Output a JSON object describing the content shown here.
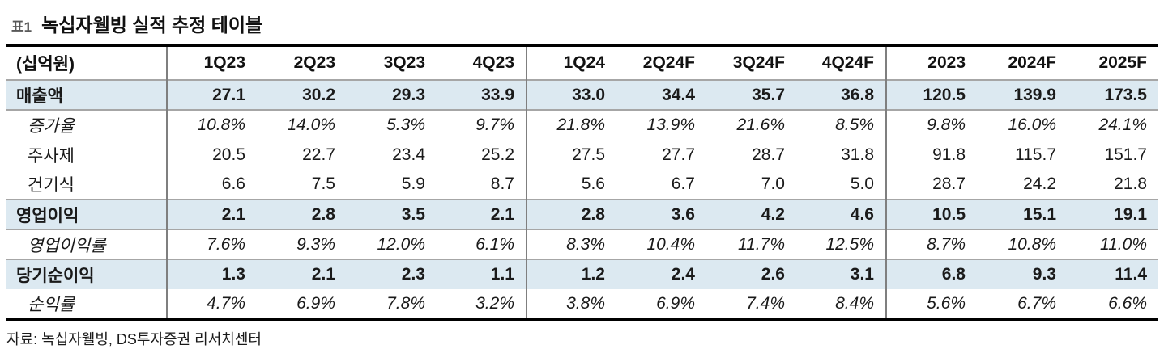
{
  "title": {
    "tag": "표1",
    "text": "녹십자웰빙 실적 추정 테이블"
  },
  "table": {
    "unit_label": "(십억원)",
    "columns": [
      "1Q23",
      "2Q23",
      "3Q23",
      "4Q23",
      "1Q24",
      "2Q24F",
      "3Q24F",
      "4Q24F",
      "2023",
      "2024F",
      "2025F"
    ],
    "rows": [
      {
        "label": "매출액",
        "style": "section",
        "values": [
          "27.1",
          "30.2",
          "29.3",
          "33.9",
          "33.0",
          "34.4",
          "35.7",
          "36.8",
          "120.5",
          "139.9",
          "173.5"
        ]
      },
      {
        "label": "증가율",
        "style": "rate",
        "values": [
          "10.8%",
          "14.0%",
          "5.3%",
          "9.7%",
          "21.8%",
          "13.9%",
          "21.6%",
          "8.5%",
          "9.8%",
          "16.0%",
          "24.1%"
        ]
      },
      {
        "label": "주사제",
        "style": "sub",
        "values": [
          "20.5",
          "22.7",
          "23.4",
          "25.2",
          "27.5",
          "27.7",
          "28.7",
          "31.8",
          "91.8",
          "115.7",
          "151.7"
        ]
      },
      {
        "label": "건기식",
        "style": "sub",
        "values": [
          "6.6",
          "7.5",
          "5.9",
          "8.7",
          "5.6",
          "6.7",
          "7.0",
          "5.0",
          "28.7",
          "24.2",
          "21.8"
        ]
      },
      {
        "label": "영업이익",
        "style": "section",
        "values": [
          "2.1",
          "2.8",
          "3.5",
          "2.1",
          "2.8",
          "3.6",
          "4.2",
          "4.6",
          "10.5",
          "15.1",
          "19.1"
        ]
      },
      {
        "label": "영업이익률",
        "style": "rate",
        "values": [
          "7.6%",
          "9.3%",
          "12.0%",
          "6.1%",
          "8.3%",
          "10.4%",
          "11.7%",
          "12.5%",
          "8.7%",
          "10.8%",
          "11.0%"
        ]
      },
      {
        "label": "당기순이익",
        "style": "section",
        "values": [
          "1.3",
          "2.1",
          "2.3",
          "1.1",
          "1.2",
          "2.4",
          "2.6",
          "3.1",
          "6.8",
          "9.3",
          "11.4"
        ]
      },
      {
        "label": "순익률",
        "style": "rate",
        "values": [
          "4.7%",
          "6.9%",
          "7.8%",
          "3.2%",
          "3.8%",
          "6.9%",
          "7.4%",
          "8.4%",
          "5.6%",
          "6.7%",
          "6.6%"
        ]
      }
    ],
    "group_divider_after_column_indexes": [
      3,
      7
    ]
  },
  "footer": {
    "source": "자료: 녹십자웰빙, DS투자증권 리서치센터"
  },
  "colors": {
    "highlight_row_bg": "#dce9f1",
    "border_dark": "#000000",
    "border_gray": "#a6a6a6",
    "divider_gray": "#7f7f7f",
    "tag_color": "#595959"
  }
}
